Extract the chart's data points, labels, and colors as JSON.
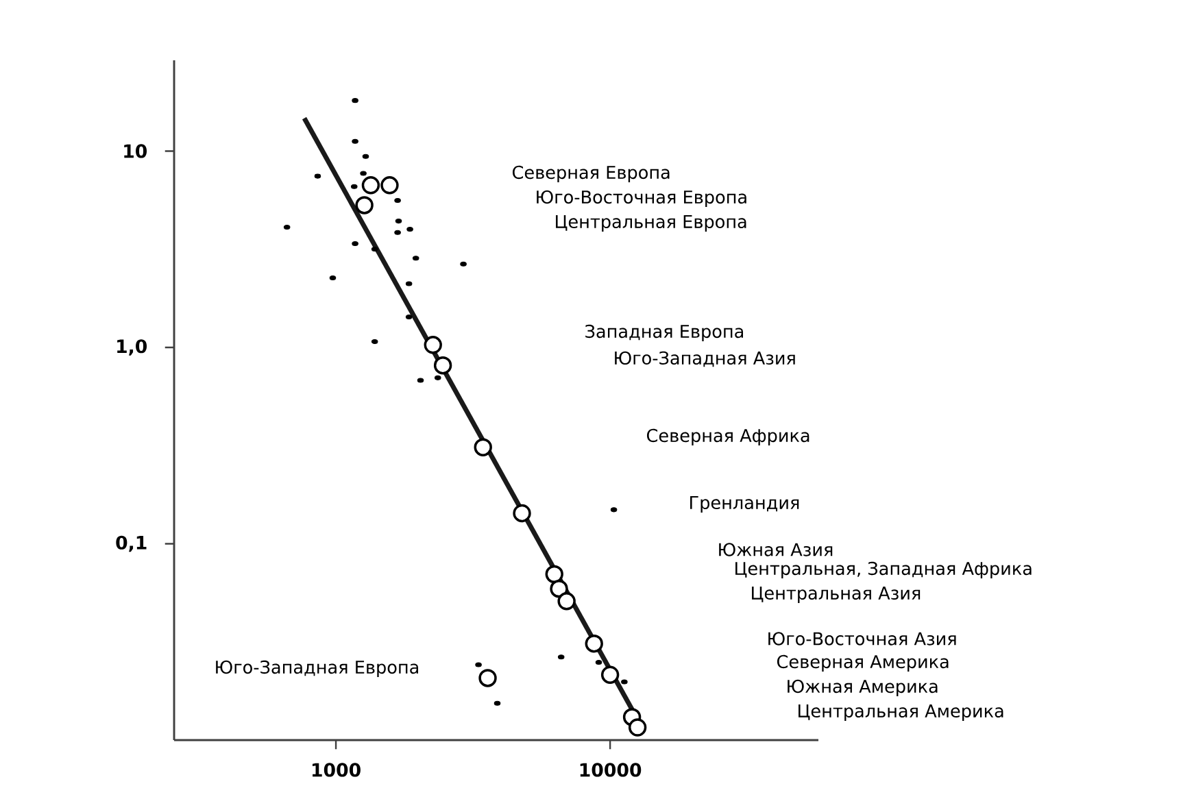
{
  "chart_data": {
    "type": "scatter",
    "log": "xy",
    "marker": "circle",
    "xlim": [
      257,
      57500
    ],
    "ylim": [
      0.01,
      29
    ],
    "xticks": [
      1000,
      10000
    ],
    "yticks": [
      {
        "value": 0.1,
        "label": "0,1"
      },
      {
        "value": 1,
        "label": "1,0"
      },
      10
    ],
    "series": [
      {
        "color": "#000000",
        "x": [
          1175,
          1175,
          1284,
          858,
          1259,
          1166,
          1679,
          663,
          1693,
          1862,
          1679,
          1175,
          1385,
          1957,
          2917,
          974,
          1847,
          1847,
          1385,
          2035,
          2353,
          10320,
          6630,
          3311,
          3878,
          9090,
          11270
        ],
        "values": [
          18.1,
          11.2,
          9.4,
          7.45,
          7.7,
          6.6,
          5.6,
          4.1,
          4.4,
          4.0,
          3.85,
          3.38,
          3.17,
          2.85,
          2.66,
          2.26,
          2.11,
          1.43,
          1.07,
          0.68,
          0.7,
          0.149,
          0.0265,
          0.0242,
          0.0154,
          0.0249,
          0.0198
        ]
      },
      {
        "type": "line",
        "color": "#1a1a1a",
        "marker": "none",
        "x": [
          767,
          13030
        ],
        "values": [
          14.7,
          0.0117
        ]
      },
      {
        "color": "#000000",
        "x": [
          1340,
          1570,
          1270,
          2260,
          2455,
          3440,
          4770,
          6260,
          6510,
          6940,
          8740,
          10000,
          12020,
          12590,
          3578
        ],
        "values": [
          6.7,
          6.7,
          5.3,
          1.03,
          0.81,
          0.31,
          0.143,
          0.07,
          0.059,
          0.051,
          0.031,
          0.0215,
          0.0131,
          0.0116,
          0.0207
        ]
      }
    ],
    "annotations": [
      "Северная Европа",
      "Юго-Восточная Европа",
      "Центральная Европа",
      "Западная Европа",
      "Юго-Западная Азия",
      "Северная Африка",
      "Гренландия",
      "Южная Азия",
      "Центральная, Западная Африка",
      "Центральная Азия",
      "Юго-Восточная Азия",
      "Северная Америка",
      "Южная Америка",
      "Центральная Америка",
      "Юго-Западная Европа"
    ]
  }
}
